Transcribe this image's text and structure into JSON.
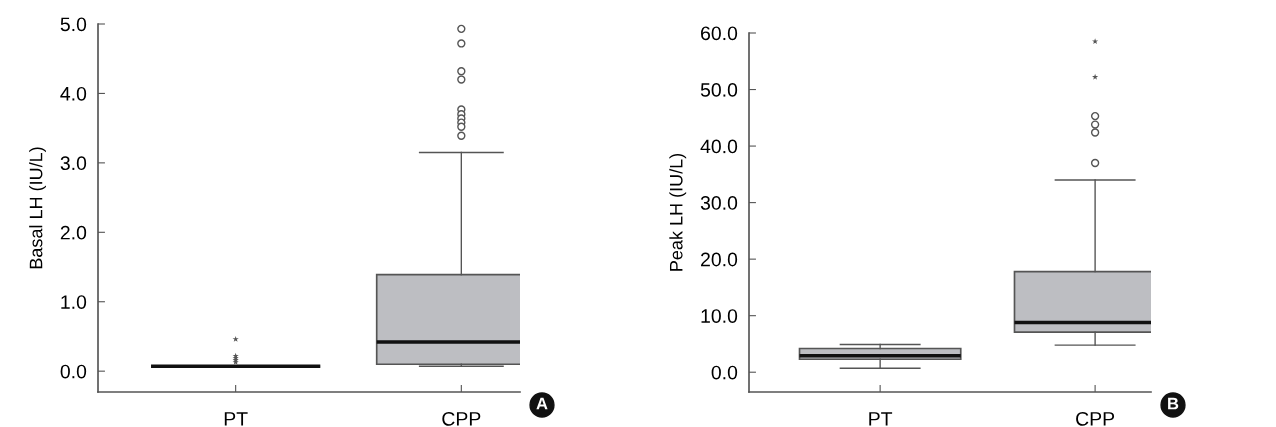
{
  "chart_data": [
    {
      "type": "box",
      "categories": [
        "PT",
        "CPP"
      ],
      "ylabel": "Basal LH (IU/L)",
      "ylim": [
        -0.3,
        5.0
      ],
      "yticks": [
        {
          "value": 0,
          "label": "0.0"
        },
        {
          "value": 1,
          "label": "1.0"
        },
        {
          "value": 2,
          "label": "2.0"
        },
        {
          "value": 3,
          "label": "3.0"
        },
        {
          "value": 4,
          "label": "4.0"
        },
        {
          "value": 5,
          "label": "5.0"
        }
      ],
      "color": "#bdbec2",
      "boxes": [
        {
          "low": 0.07,
          "q1": 0.07,
          "median": 0.07,
          "q3": 0.07,
          "high": 0.07
        },
        {
          "low": 0.07,
          "q1": 0.1,
          "median": 0.42,
          "q3": 1.39,
          "high": 3.15,
          "outliers": [
            4.93,
            4.72,
            4.32,
            4.2,
            3.77,
            3.7,
            3.64,
            3.58,
            3.52,
            3.39
          ]
        }
      ],
      "series": [
        {
          "type": "scatter",
          "marker": "star",
          "color": "#555555",
          "x": [
            "PT",
            "PT",
            "PT",
            "PT",
            "PT"
          ],
          "values": [
            0.46,
            0.22,
            0.19,
            0.16,
            0.13
          ]
        }
      ],
      "annotations": [
        "A"
      ]
    },
    {
      "type": "box",
      "categories": [
        "PT",
        "CPP"
      ],
      "ylabel": "Peak LH (IU/L)",
      "ylim": [
        -3.5,
        60.0
      ],
      "yticks": [
        {
          "value": 0,
          "label": "0.0"
        },
        {
          "value": 10,
          "label": "10.0"
        },
        {
          "value": 20,
          "label": "20.0"
        },
        {
          "value": 30,
          "label": "30.0"
        },
        {
          "value": 40,
          "label": "40.0"
        },
        {
          "value": 50,
          "label": "50.0"
        },
        {
          "value": 60,
          "label": "60.0"
        }
      ],
      "color": "#bdbec2",
      "boxes": [
        {
          "low": 0.7,
          "q1": 2.3,
          "median": 2.9,
          "q3": 4.2,
          "high": 4.9
        },
        {
          "low": 4.8,
          "q1": 7.1,
          "median": 8.8,
          "q3": 17.8,
          "high": 34.0,
          "outliers": [
            45.3,
            43.8,
            42.4,
            37.0
          ]
        }
      ],
      "series": [
        {
          "type": "scatter",
          "marker": "star",
          "color": "#555555",
          "x": [
            "CPP",
            "CPP"
          ],
          "values": [
            58.5,
            52.2
          ]
        }
      ],
      "annotations": [
        "B"
      ]
    }
  ]
}
